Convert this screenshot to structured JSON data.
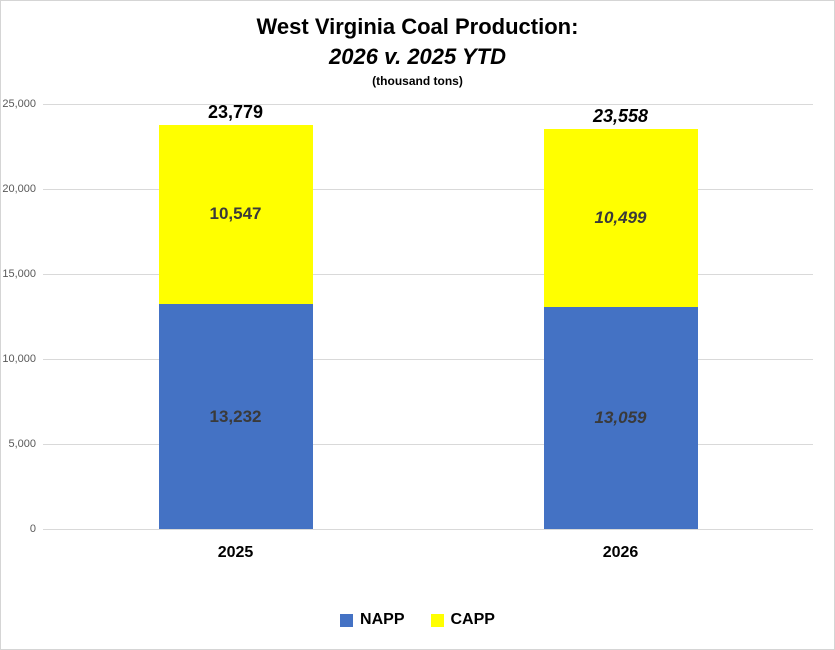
{
  "chart_data": {
    "type": "bar",
    "stacked": true,
    "title": "West Virginia Coal Production:",
    "subtitle": "2026 v. 2025 YTD",
    "units_note": "(thousand tons)",
    "categories": [
      "2025",
      "2026"
    ],
    "category_label_styles": [
      "normal",
      "italic"
    ],
    "series": [
      {
        "name": "NAPP",
        "color": "#4472C4",
        "values": [
          13232,
          13059
        ],
        "labels": [
          "13,232",
          "13,059"
        ]
      },
      {
        "name": "CAPP",
        "color": "#FFFF00",
        "values": [
          10547,
          10499
        ],
        "labels": [
          "10,547",
          "10,499"
        ]
      }
    ],
    "totals": [
      23779,
      23558
    ],
    "total_labels": [
      "23,779",
      "23,558"
    ],
    "ylim": [
      0,
      25000
    ],
    "y_ticks": [
      {
        "value": 0,
        "label": "0"
      },
      {
        "value": 5000,
        "label": "5,000"
      },
      {
        "value": 10000,
        "label": "10,000"
      },
      {
        "value": 15000,
        "label": "15,000"
      },
      {
        "value": 20000,
        "label": "20,000"
      },
      {
        "value": 25000,
        "label": "25,000"
      }
    ],
    "grid": true,
    "legend_position": "bottom",
    "colors": {
      "napp": "#4472C4",
      "capp": "#FFFF00",
      "gridline": "#D9D9D9",
      "axis_text": "#595959",
      "segment_label": "#3A3A3A",
      "total_label": "#000000",
      "border": "#D5D5D5"
    }
  }
}
